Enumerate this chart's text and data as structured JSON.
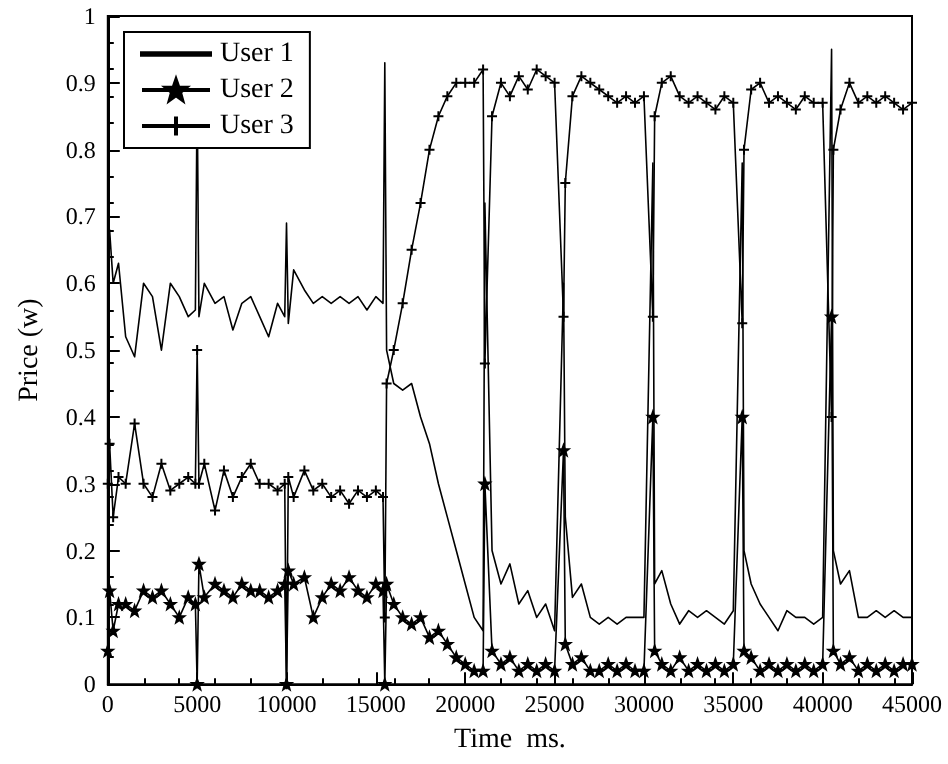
{
  "chart_data": {
    "type": "line",
    "xlabel": "Time  ms.",
    "ylabel": "Price (w)",
    "xlim": [
      0,
      45000
    ],
    "xticks": [
      0,
      5000,
      10000,
      15000,
      20000,
      25000,
      30000,
      35000,
      40000,
      45000
    ],
    "ylim": [
      0,
      1
    ],
    "yticks": [
      0,
      0.1,
      0.2,
      0.3,
      0.4,
      0.5,
      0.6,
      0.7,
      0.8,
      0.9,
      1
    ],
    "grid": false,
    "legend": "top left",
    "line_style": "solid",
    "x": [
      0,
      100,
      300,
      600,
      1000,
      1500,
      2000,
      2500,
      3000,
      3500,
      4000,
      4500,
      4900,
      5000,
      5100,
      5400,
      6000,
      6500,
      7000,
      7500,
      8000,
      8500,
      9000,
      9500,
      9900,
      10000,
      10100,
      10400,
      11000,
      11500,
      12000,
      12500,
      13000,
      13500,
      14000,
      14500,
      15000,
      15400,
      15500,
      15600,
      16000,
      16500,
      17000,
      17500,
      18000,
      18500,
      19000,
      19500,
      20000,
      20500,
      21000,
      21100,
      21500,
      22000,
      22500,
      23000,
      23500,
      24000,
      24500,
      25000,
      25500,
      25600,
      26000,
      26500,
      27000,
      27500,
      28000,
      28500,
      29000,
      29500,
      30000,
      30500,
      30600,
      31000,
      31500,
      32000,
      32500,
      33000,
      33500,
      34000,
      34500,
      35000,
      35500,
      35600,
      36000,
      36500,
      37000,
      37500,
      38000,
      38500,
      39000,
      39500,
      40000,
      40500,
      40600,
      41000,
      41500,
      42000,
      42500,
      43000,
      43500,
      44000,
      44500,
      45000
    ],
    "series": [
      {
        "name": "User 1",
        "color": "#000000",
        "marker": "none",
        "values": [
          0.55,
          0.68,
          0.6,
          0.63,
          0.52,
          0.49,
          0.6,
          0.58,
          0.5,
          0.6,
          0.58,
          0.55,
          0.56,
          0.89,
          0.55,
          0.6,
          0.57,
          0.58,
          0.53,
          0.57,
          0.58,
          0.55,
          0.52,
          0.57,
          0.55,
          0.69,
          0.54,
          0.62,
          0.59,
          0.57,
          0.58,
          0.57,
          0.58,
          0.57,
          0.58,
          0.56,
          0.58,
          0.57,
          0.93,
          0.5,
          0.45,
          0.44,
          0.45,
          0.4,
          0.36,
          0.3,
          0.25,
          0.2,
          0.15,
          0.1,
          0.08,
          0.72,
          0.2,
          0.15,
          0.18,
          0.12,
          0.14,
          0.1,
          0.12,
          0.08,
          0.6,
          0.25,
          0.13,
          0.15,
          0.1,
          0.09,
          0.1,
          0.09,
          0.1,
          0.1,
          0.1,
          0.78,
          0.15,
          0.17,
          0.12,
          0.09,
          0.11,
          0.1,
          0.11,
          0.1,
          0.09,
          0.11,
          0.78,
          0.2,
          0.15,
          0.12,
          0.1,
          0.08,
          0.11,
          0.1,
          0.1,
          0.09,
          0.1,
          0.95,
          0.2,
          0.15,
          0.17,
          0.1,
          0.1,
          0.11,
          0.1,
          0.11,
          0.1,
          0.1
        ]
      },
      {
        "name": "User 2",
        "color": "#000000",
        "marker": "star",
        "values": [
          0.05,
          0.14,
          0.08,
          0.12,
          0.12,
          0.11,
          0.14,
          0.13,
          0.14,
          0.12,
          0.1,
          0.13,
          0.12,
          0.0,
          0.18,
          0.13,
          0.15,
          0.14,
          0.13,
          0.15,
          0.14,
          0.14,
          0.13,
          0.14,
          0.15,
          0.0,
          0.17,
          0.15,
          0.16,
          0.1,
          0.13,
          0.15,
          0.14,
          0.16,
          0.14,
          0.13,
          0.15,
          0.14,
          0.0,
          0.15,
          0.12,
          0.1,
          0.09,
          0.1,
          0.07,
          0.08,
          0.06,
          0.04,
          0.03,
          0.02,
          0.02,
          0.3,
          0.05,
          0.03,
          0.04,
          0.02,
          0.03,
          0.02,
          0.03,
          0.02,
          0.35,
          0.06,
          0.03,
          0.04,
          0.02,
          0.02,
          0.03,
          0.02,
          0.03,
          0.02,
          0.02,
          0.4,
          0.05,
          0.03,
          0.02,
          0.04,
          0.02,
          0.03,
          0.02,
          0.03,
          0.02,
          0.03,
          0.4,
          0.05,
          0.04,
          0.02,
          0.03,
          0.02,
          0.03,
          0.02,
          0.03,
          0.02,
          0.03,
          0.55,
          0.05,
          0.03,
          0.04,
          0.02,
          0.03,
          0.02,
          0.03,
          0.02,
          0.03,
          0.03
        ]
      },
      {
        "name": "User 3",
        "color": "#000000",
        "marker": "cross",
        "values": [
          0.3,
          0.36,
          0.25,
          0.31,
          0.3,
          0.39,
          0.3,
          0.28,
          0.33,
          0.29,
          0.3,
          0.31,
          0.3,
          0.5,
          0.3,
          0.33,
          0.26,
          0.32,
          0.28,
          0.31,
          0.33,
          0.3,
          0.3,
          0.29,
          0.3,
          0.0,
          0.31,
          0.28,
          0.32,
          0.29,
          0.3,
          0.28,
          0.29,
          0.27,
          0.29,
          0.28,
          0.29,
          0.28,
          0.1,
          0.45,
          0.5,
          0.57,
          0.65,
          0.72,
          0.8,
          0.85,
          0.88,
          0.9,
          0.9,
          0.9,
          0.92,
          0.48,
          0.85,
          0.9,
          0.88,
          0.91,
          0.89,
          0.92,
          0.91,
          0.9,
          0.55,
          0.75,
          0.88,
          0.91,
          0.9,
          0.89,
          0.88,
          0.87,
          0.88,
          0.87,
          0.88,
          0.55,
          0.85,
          0.9,
          0.91,
          0.88,
          0.87,
          0.88,
          0.87,
          0.86,
          0.88,
          0.87,
          0.54,
          0.8,
          0.89,
          0.9,
          0.87,
          0.88,
          0.87,
          0.86,
          0.88,
          0.87,
          0.87,
          0.4,
          0.8,
          0.86,
          0.9,
          0.87,
          0.88,
          0.87,
          0.88,
          0.87,
          0.86,
          0.87
        ]
      }
    ]
  }
}
